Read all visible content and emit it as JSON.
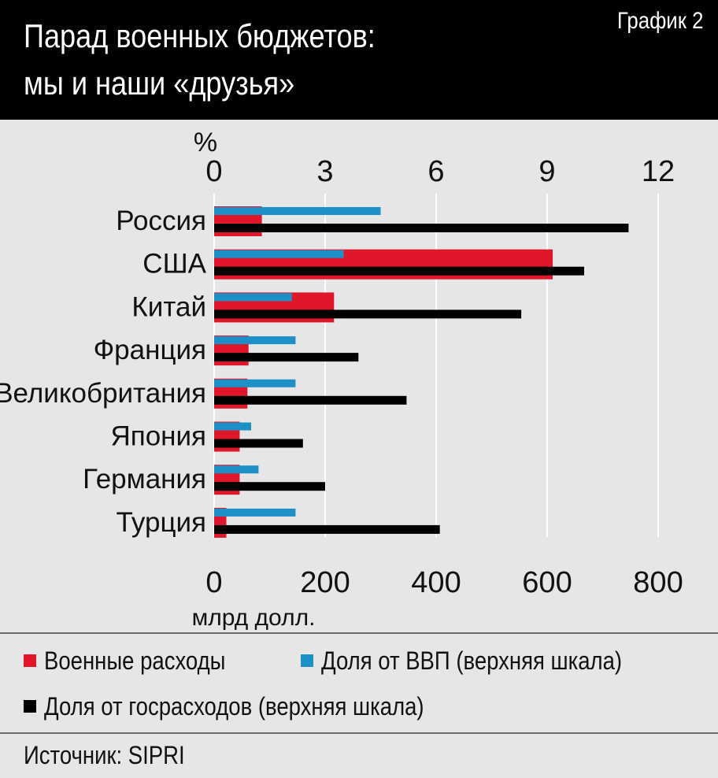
{
  "header": {
    "title_line1": "Парад военных бюджетов:",
    "title_line2": "мы и наши «друзья»",
    "chart_label": "График 2"
  },
  "colors": {
    "military": "#e0162b",
    "gdp_share": "#1e90c8",
    "gov_share": "#000000",
    "grid": "#ffffff",
    "background": "#e6e6e6"
  },
  "legend": {
    "military_label": "Военные расходы",
    "gdp_label": "Доля от ВВП (верхняя шкала)",
    "gov_label": "Доля от госрасходов (верхняя шкала)"
  },
  "source": "Источник: SIPRI",
  "chart_data": {
    "type": "bar",
    "orientation": "horizontal",
    "categories": [
      "Россия",
      "США",
      "Китай",
      "Франция",
      "Великобритания",
      "Япония",
      "Германия",
      "Турция"
    ],
    "series": [
      {
        "name": "Военные расходы",
        "axis": "bottom",
        "values": [
          86,
          610,
          216,
          62,
          60,
          46,
          46,
          22
        ]
      },
      {
        "name": "Доля от ВВП (верхняя шкала)",
        "axis": "top",
        "values": [
          4.5,
          3.5,
          2.1,
          2.2,
          2.2,
          1.0,
          1.2,
          2.2
        ]
      },
      {
        "name": "Доля от госрасходов (верхняя шкала)",
        "axis": "top",
        "values": [
          11.2,
          10.0,
          8.3,
          3.9,
          5.2,
          2.4,
          3.0,
          6.1
        ]
      }
    ],
    "bottom_axis": {
      "label": "млрд долл.",
      "min": 0,
      "max": 800,
      "ticks": [
        "0",
        "200",
        "400",
        "600",
        "800"
      ]
    },
    "top_axis": {
      "label": "%",
      "min": 0,
      "max": 12,
      "ticks": [
        "0",
        "3",
        "6",
        "9",
        "12"
      ]
    },
    "grid": true,
    "legend_position": "bottom"
  }
}
